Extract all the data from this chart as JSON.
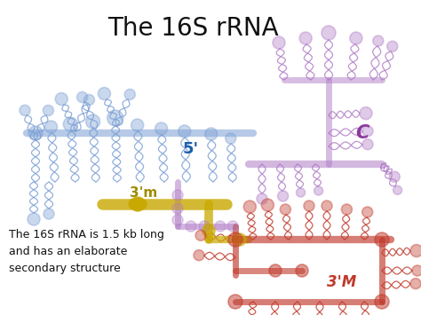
{
  "title": "The 16S rRNA",
  "title_fontsize": 20,
  "title_color": "#111111",
  "background_color": "#ffffff",
  "annotation_text": "The 16S rRNA is 1.5 kb long\nand has an elaborate\nsecondary structure",
  "annotation_fontsize": 9,
  "annotation_color": "#111111",
  "label_5prime": "5'",
  "label_5prime_color": "#1a5fa8",
  "label_3m": "3'm",
  "label_3m_color": "#9e8c00",
  "label_3M": "3'M",
  "label_3M_color": "#c0392b",
  "label_C": "C",
  "label_C_color": "#8b3a9e",
  "c5": "#7b9fd4",
  "cC": "#b07cc6",
  "c3m": "#c8a800",
  "c3M": "#c0392b",
  "figsize": [
    4.74,
    3.55
  ],
  "dpi": 100
}
